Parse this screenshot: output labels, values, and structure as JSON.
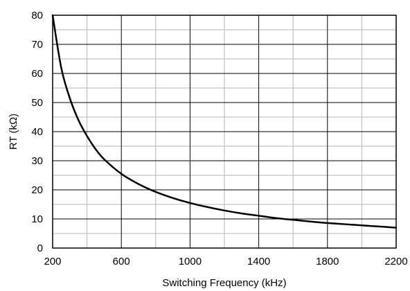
{
  "chart_data": {
    "type": "line",
    "title": "",
    "xlabel": "Switching Frequency (kHz)",
    "ylabel": "RT (kΩ)",
    "xlim": [
      200,
      2200
    ],
    "ylim": [
      0,
      80
    ],
    "x_major_ticks": [
      200,
      600,
      1000,
      1400,
      1800,
      2200
    ],
    "x_minor_gridlines": [
      400,
      800,
      1200,
      1600,
      2000
    ],
    "y_ticks": [
      0,
      10,
      20,
      30,
      40,
      50,
      60,
      70,
      80
    ],
    "y_minor_gridlines": [
      5,
      15,
      25,
      35,
      45,
      55,
      65,
      75
    ],
    "grid": true,
    "legend": "none",
    "series": [
      {
        "x": [
          200,
          250,
          300,
          350,
          400,
          450,
          500,
          600,
          700,
          800,
          900,
          1000,
          1100,
          1200,
          1300,
          1400,
          1500,
          1600,
          1700,
          1800,
          1900,
          2000,
          2100,
          2200
        ],
        "values": [
          80,
          62,
          51.5,
          44,
          38.5,
          34,
          30.5,
          25.5,
          22,
          19.3,
          17.2,
          15.5,
          14.1,
          12.9,
          11.9,
          11.1,
          10.3,
          9.7,
          9.1,
          8.6,
          8.2,
          7.8,
          7.4,
          7.0
        ]
      }
    ],
    "colors": {
      "line": "#000000",
      "major_grid": "#000000",
      "minor_grid": "#b4b4b4",
      "background": "#ffffff"
    }
  }
}
